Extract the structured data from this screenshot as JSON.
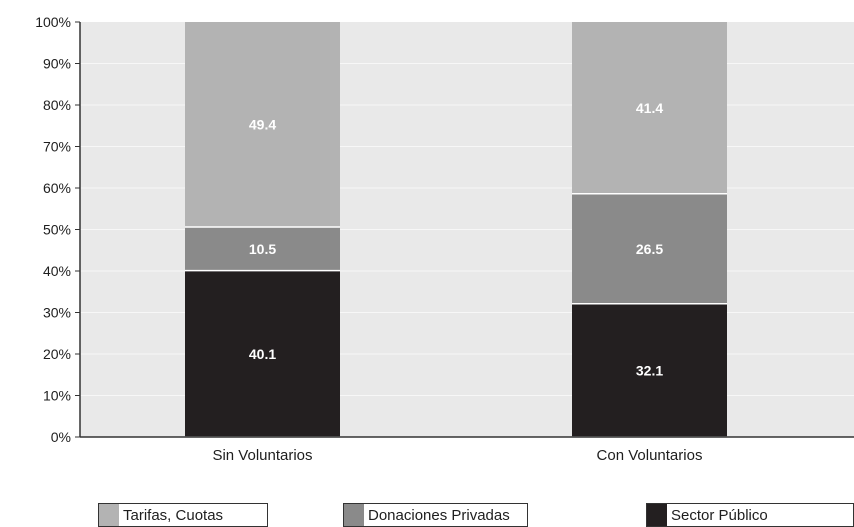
{
  "chart_data": {
    "type": "bar",
    "stacked": true,
    "categories": [
      "Sin Voluntarios",
      "Con Voluntarios"
    ],
    "series": [
      {
        "name": "Sector Público",
        "values": [
          40.1,
          32.1
        ],
        "color": "#231f20"
      },
      {
        "name": "Donaciones Privadas",
        "values": [
          10.5,
          26.5
        ],
        "color": "#8a8a8a"
      },
      {
        "name": "Tarifas, Cuotas",
        "values": [
          49.4,
          41.4
        ],
        "color": "#b3b3b3"
      }
    ],
    "ylim": [
      0,
      100
    ],
    "yticks": [
      "0%",
      "10%",
      "20%",
      "30%",
      "40%",
      "50%",
      "60%",
      "70%",
      "80%",
      "90%",
      "100%"
    ],
    "grid": true,
    "legend_position": "bottom",
    "background_color": "#e9e9e9",
    "title": "",
    "xlabel": "",
    "ylabel": ""
  },
  "legend": {
    "items": [
      {
        "label": "Tarifas, Cuotas",
        "color": "#b3b3b3"
      },
      {
        "label": "Donaciones Privadas",
        "color": "#8a8a8a"
      },
      {
        "label": "Sector Público",
        "color": "#231f20"
      }
    ]
  }
}
